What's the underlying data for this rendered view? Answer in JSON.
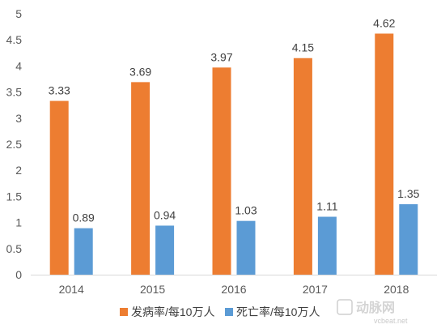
{
  "chart_data": {
    "type": "bar",
    "categories": [
      "2014",
      "2015",
      "2016",
      "2017",
      "2018"
    ],
    "series": [
      {
        "name": "发病率/每10万人",
        "color": "#ED7D31",
        "values": [
          3.33,
          3.69,
          3.97,
          4.15,
          4.62
        ]
      },
      {
        "name": "死亡率/每10万人",
        "color": "#5B9BD5",
        "values": [
          0.89,
          0.94,
          1.03,
          1.11,
          1.35
        ]
      }
    ],
    "ylim": [
      0,
      5
    ],
    "yticks": [
      "0",
      "0.5",
      "1",
      "1.5",
      "2",
      "2.5",
      "3",
      "3.5",
      "4",
      "4.5",
      "5"
    ],
    "ytick_values": [
      0,
      0.5,
      1,
      1.5,
      2,
      2.5,
      3,
      3.5,
      4,
      4.5,
      5
    ],
    "value_labels": [
      [
        "3.33",
        "3.69",
        "3.97",
        "4.15",
        "4.62"
      ],
      [
        "0.89",
        "0.94",
        "1.03",
        "1.11",
        "1.35"
      ]
    ],
    "grid": false,
    "legend_position": "bottom"
  },
  "watermark": {
    "logo_text": "动脉网",
    "site": "vcbeat.net"
  }
}
